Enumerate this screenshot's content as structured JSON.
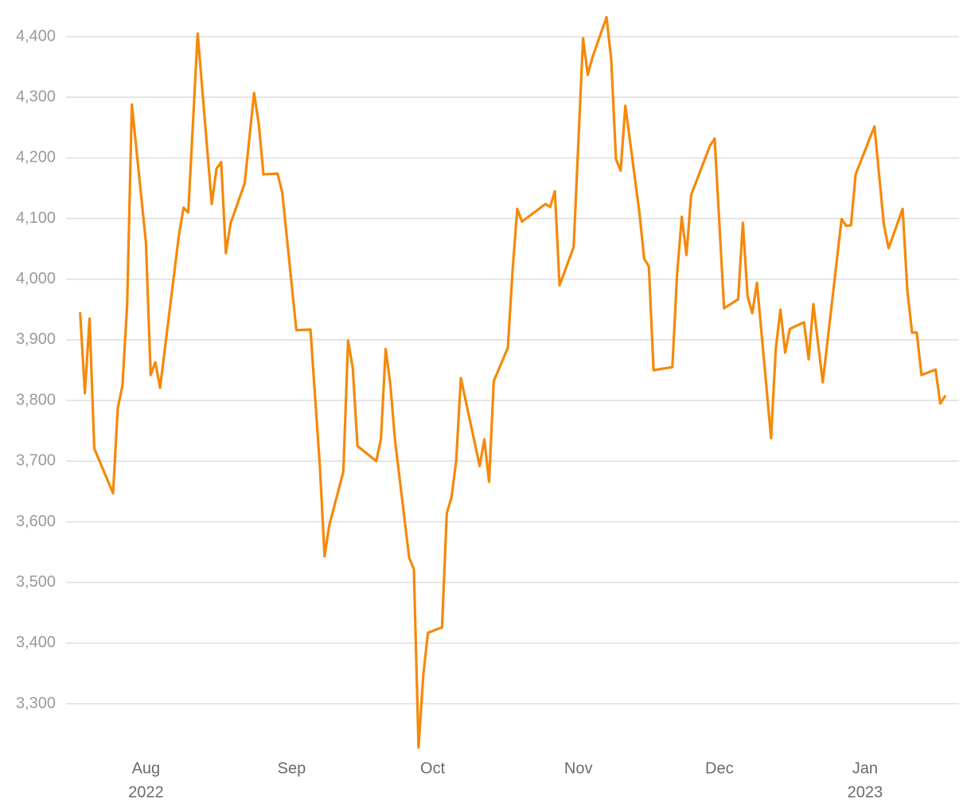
{
  "chart_data": {
    "type": "line",
    "x": [
      "2022-07-18",
      "2022-07-19",
      "2022-07-20",
      "2022-07-21",
      "2022-07-25",
      "2022-07-26",
      "2022-07-27",
      "2022-07-28",
      "2022-07-29",
      "2022-08-01",
      "2022-08-02",
      "2022-08-03",
      "2022-08-04",
      "2022-08-08",
      "2022-08-09",
      "2022-08-10",
      "2022-08-12",
      "2022-08-15",
      "2022-08-16",
      "2022-08-17",
      "2022-08-18",
      "2022-08-19",
      "2022-08-22",
      "2022-08-24",
      "2022-08-25",
      "2022-08-26",
      "2022-08-29",
      "2022-08-30",
      "2022-09-02",
      "2022-09-05",
      "2022-09-07",
      "2022-09-08",
      "2022-09-09",
      "2022-09-12",
      "2022-09-13",
      "2022-09-14",
      "2022-09-15",
      "2022-09-19",
      "2022-09-20",
      "2022-09-21",
      "2022-09-22",
      "2022-09-23",
      "2022-09-26",
      "2022-09-27",
      "2022-09-28",
      "2022-09-29",
      "2022-09-30",
      "2022-10-03",
      "2022-10-04",
      "2022-10-05",
      "2022-10-06",
      "2022-10-07",
      "2022-10-11",
      "2022-10-12",
      "2022-10-13",
      "2022-10-14",
      "2022-10-17",
      "2022-10-18",
      "2022-10-19",
      "2022-10-20",
      "2022-10-25",
      "2022-10-26",
      "2022-10-27",
      "2022-10-28",
      "2022-10-31",
      "2022-11-02",
      "2022-11-03",
      "2022-11-04",
      "2022-11-07",
      "2022-11-08",
      "2022-11-09",
      "2022-11-10",
      "2022-11-11",
      "2022-11-14",
      "2022-11-15",
      "2022-11-16",
      "2022-11-17",
      "2022-11-21",
      "2022-11-22",
      "2022-11-23",
      "2022-11-24",
      "2022-11-25",
      "2022-11-29",
      "2022-11-30",
      "2022-12-02",
      "2022-12-05",
      "2022-12-06",
      "2022-12-07",
      "2022-12-08",
      "2022-12-09",
      "2022-12-12",
      "2022-12-13",
      "2022-12-14",
      "2022-12-15",
      "2022-12-16",
      "2022-12-19",
      "2022-12-20",
      "2022-12-21",
      "2022-12-23",
      "2022-12-27",
      "2022-12-28",
      "2022-12-29",
      "2022-12-30",
      "2023-01-03",
      "2023-01-05",
      "2023-01-06",
      "2023-01-09",
      "2023-01-10",
      "2023-01-11",
      "2023-01-12",
      "2023-01-13",
      "2023-01-16",
      "2023-01-17",
      "2023-01-18"
    ],
    "series": [
      {
        "color": "#f5890a",
        "values": [
          3944,
          3812,
          3935,
          3721,
          3647,
          3787,
          3825,
          3958,
          4288,
          4060,
          3842,
          3863,
          3821,
          4072,
          4118,
          4110,
          4405,
          4124,
          4182,
          4193,
          4043,
          4092,
          4158,
          4307,
          4256,
          4173,
          4174,
          4143,
          3916,
          3917,
          3692,
          3543,
          3594,
          3683,
          3899,
          3854,
          3725,
          3700,
          3737,
          3885,
          3826,
          3734,
          3541,
          3522,
          3228,
          3347,
          3417,
          3426,
          3614,
          3640,
          3700,
          3837,
          3692,
          3736,
          3666,
          3832,
          3887,
          4014,
          4116,
          4095,
          4124,
          4119,
          4145,
          3990,
          4053,
          4397,
          4337,
          4366,
          4432,
          4361,
          4198,
          4179,
          4286,
          4109,
          4034,
          4021,
          3850,
          3855,
          4007,
          4103,
          4040,
          4139,
          4220,
          4232,
          3952,
          3967,
          4093,
          3972,
          3944,
          3994,
          3738,
          3885,
          3950,
          3879,
          3918,
          3929,
          3868,
          3959,
          3830,
          4099,
          4088,
          4089,
          4173,
          4252,
          4090,
          4051,
          4116,
          3981,
          3912,
          3912,
          3842,
          3851,
          3795,
          3807
        ]
      }
    ],
    "xlim": [
      "2022-07-15",
      "2023-01-21"
    ],
    "xticks": [
      {
        "value": "2022-08-01",
        "label": "Aug"
      },
      {
        "value": "2022-09-01",
        "label": "Sep"
      },
      {
        "value": "2022-10-01",
        "label": "Oct"
      },
      {
        "value": "2022-11-01",
        "label": "Nov"
      },
      {
        "value": "2022-12-01",
        "label": "Dec"
      },
      {
        "value": "2023-01-01",
        "label": "Jan"
      }
    ],
    "xtick_years": [
      {
        "value": "2022-08-01",
        "label": "2022"
      },
      {
        "value": "2023-01-01",
        "label": "2023"
      }
    ],
    "ylim": [
      3220,
      4440
    ],
    "yticks": [
      {
        "value": 3300,
        "label": "3,300"
      },
      {
        "value": 3400,
        "label": "3,400"
      },
      {
        "value": 3500,
        "label": "3,500"
      },
      {
        "value": 3600,
        "label": "3,600"
      },
      {
        "value": 3700,
        "label": "3,700"
      },
      {
        "value": 3800,
        "label": "3,800"
      },
      {
        "value": 3900,
        "label": "3,900"
      },
      {
        "value": 4000,
        "label": "4,000"
      },
      {
        "value": 4100,
        "label": "4,100"
      },
      {
        "value": 4200,
        "label": "4,200"
      },
      {
        "value": 4300,
        "label": "4,300"
      },
      {
        "value": 4400,
        "label": "4,400"
      }
    ],
    "grid": true
  }
}
